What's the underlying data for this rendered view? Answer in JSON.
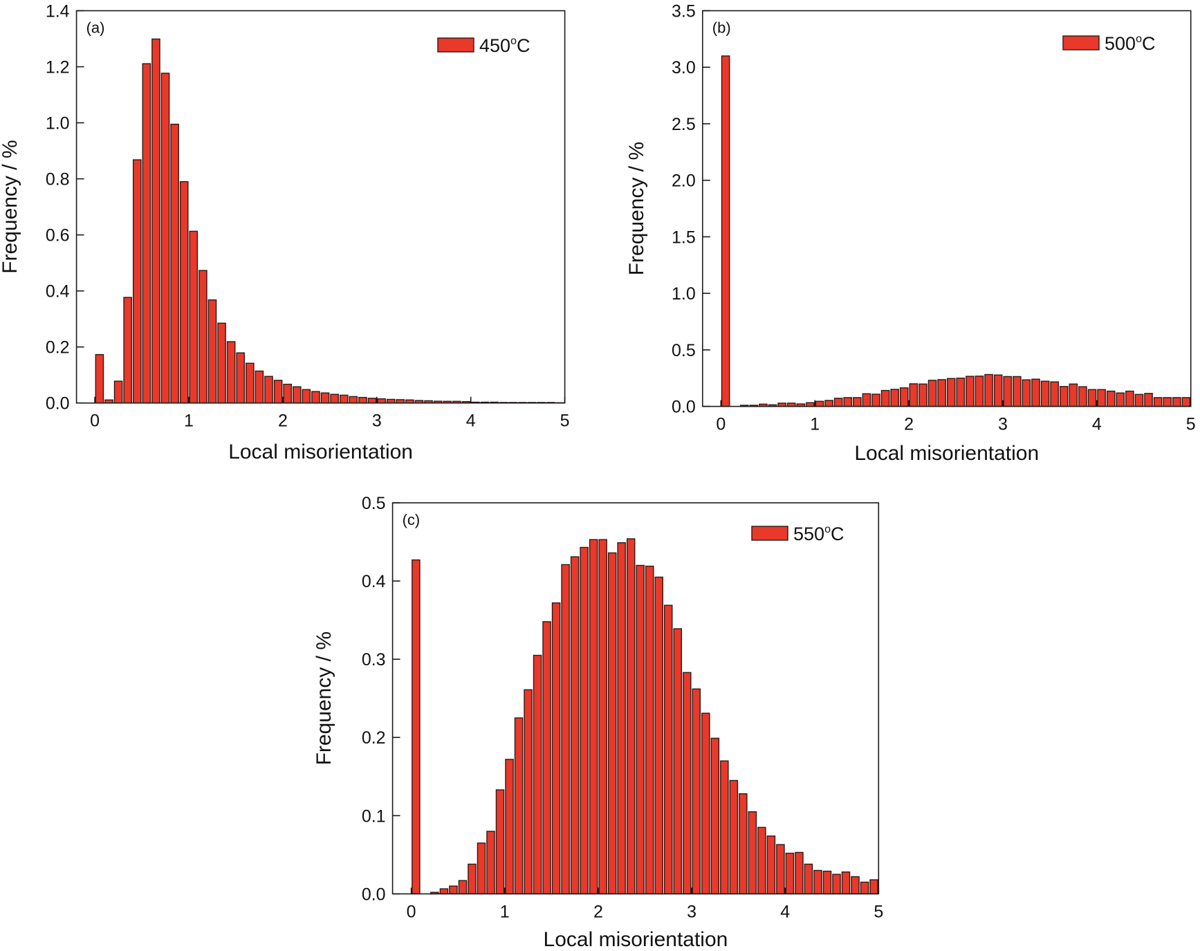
{
  "colors": {
    "bar_fill": "#E8392A",
    "bar_edge": "#2B1A17",
    "axis": "#1A1A1A"
  },
  "chart_data": [
    {
      "type": "bar",
      "panel_label": "(a)",
      "legend": {
        "temp": "450",
        "degree": "o",
        "unit": "C",
        "placement": "top-right"
      },
      "xlabel": "Local misorientation",
      "ylabel": "Frequency / %",
      "xlim": [
        -0.195,
        5.0
      ],
      "ylim": [
        0,
        1.4
      ],
      "xticks": [
        0,
        1,
        2,
        3,
        4,
        5
      ],
      "xtick_labels": [
        "0",
        "1",
        "2",
        "3",
        "4",
        "5"
      ],
      "yticks": [
        0,
        0.2,
        0.4,
        0.6,
        0.8,
        1.0,
        1.2,
        1.4
      ],
      "ytick_labels": [
        "0.0",
        "0.2",
        "0.4",
        "0.6",
        "0.8",
        "1.0",
        "1.2",
        "1.4"
      ],
      "bin_width": 0.1,
      "bin_start": 0.0,
      "values": [
        0.173,
        0.011,
        0.078,
        0.377,
        0.868,
        1.211,
        1.299,
        1.177,
        0.995,
        0.79,
        0.613,
        0.473,
        0.368,
        0.285,
        0.219,
        0.179,
        0.142,
        0.114,
        0.095,
        0.081,
        0.067,
        0.058,
        0.048,
        0.041,
        0.036,
        0.031,
        0.028,
        0.023,
        0.02,
        0.017,
        0.015,
        0.013,
        0.012,
        0.011,
        0.009,
        0.008,
        0.0065,
        0.006,
        0.006,
        0.005,
        0.003,
        0.003,
        0.003,
        0.002,
        0.002,
        0.002,
        0.002,
        0.002,
        0.002,
        0.001
      ]
    },
    {
      "type": "bar",
      "panel_label": "(b)",
      "legend": {
        "temp": "500",
        "degree": "o",
        "unit": "C",
        "placement": "top-right"
      },
      "xlabel": "Local misorientation",
      "ylabel": "Frequency / %",
      "xlim": [
        -0.195,
        5.0
      ],
      "ylim": [
        0,
        3.5
      ],
      "xticks": [
        0,
        1,
        2,
        3,
        4,
        5
      ],
      "xtick_labels": [
        "0",
        "1",
        "2",
        "3",
        "4",
        "5"
      ],
      "yticks": [
        0,
        0.5,
        1.0,
        1.5,
        2.0,
        2.5,
        3.0,
        3.5
      ],
      "ytick_labels": [
        "0.0",
        "0.5",
        "1.0",
        "1.5",
        "2.0",
        "2.5",
        "3.0",
        "3.5"
      ],
      "bin_width": 0.1,
      "bin_start": 0.0,
      "values": [
        3.1,
        0.0,
        0.01,
        0.01,
        0.02,
        0.014,
        0.029,
        0.029,
        0.022,
        0.033,
        0.045,
        0.053,
        0.072,
        0.078,
        0.078,
        0.112,
        0.108,
        0.141,
        0.151,
        0.164,
        0.2,
        0.198,
        0.231,
        0.237,
        0.247,
        0.25,
        0.266,
        0.268,
        0.282,
        0.278,
        0.264,
        0.264,
        0.235,
        0.241,
        0.223,
        0.217,
        0.176,
        0.198,
        0.174,
        0.149,
        0.149,
        0.135,
        0.119,
        0.135,
        0.106,
        0.115,
        0.078,
        0.078,
        0.078,
        0.078
      ]
    },
    {
      "type": "bar",
      "panel_label": "(c)",
      "legend": {
        "temp": "550",
        "degree": "o",
        "unit": "C",
        "placement": "top-right"
      },
      "xlabel": "Local misorientation",
      "ylabel": "Frequency / %",
      "xlim": [
        -0.2,
        5.0
      ],
      "ylim": [
        0,
        0.5
      ],
      "xticks": [
        0,
        1,
        2,
        3,
        4,
        5
      ],
      "xtick_labels": [
        "0",
        "1",
        "2",
        "3",
        "4",
        "5"
      ],
      "yticks": [
        0,
        0.1,
        0.2,
        0.3,
        0.4,
        0.5
      ],
      "ytick_labels": [
        "0.0",
        "0.1",
        "0.2",
        "0.3",
        "0.4",
        "0.5"
      ],
      "bin_width": 0.1,
      "bin_start": 0.0,
      "values": [
        0.427,
        0.0,
        0.002,
        0.0065,
        0.01,
        0.017,
        0.038,
        0.065,
        0.08,
        0.133,
        0.172,
        0.225,
        0.261,
        0.305,
        0.348,
        0.372,
        0.421,
        0.431,
        0.443,
        0.453,
        0.453,
        0.436,
        0.449,
        0.454,
        0.42,
        0.419,
        0.405,
        0.369,
        0.339,
        0.283,
        0.262,
        0.231,
        0.199,
        0.17,
        0.145,
        0.128,
        0.105,
        0.085,
        0.074,
        0.063,
        0.052,
        0.053,
        0.038,
        0.03,
        0.029,
        0.025,
        0.028,
        0.022,
        0.015,
        0.018
      ]
    }
  ]
}
